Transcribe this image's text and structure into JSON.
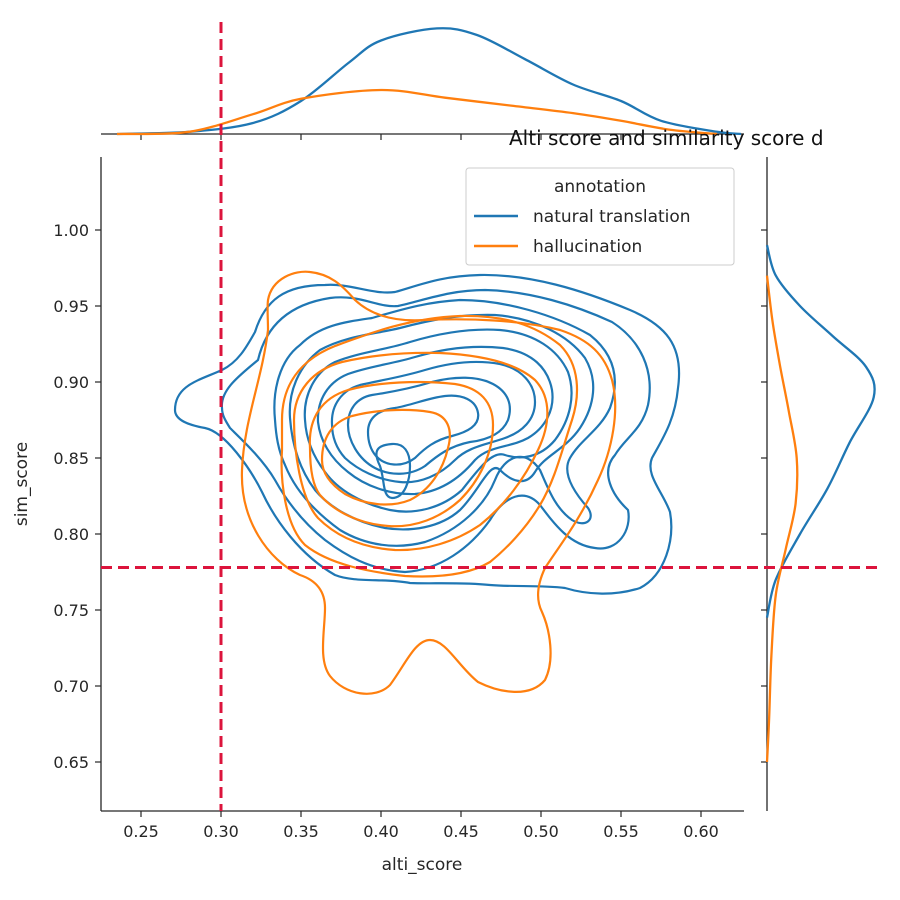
{
  "chart_data": {
    "type": "kde-joint",
    "title": "Alti score and similarity score d",
    "xlabel": "alti_score",
    "ylabel": "sim_score",
    "xlim": [
      0.225,
      0.625
    ],
    "ylim": [
      0.618,
      1.045
    ],
    "x_ticks": [
      "0.25",
      "0.30",
      "0.35",
      "0.40",
      "0.45",
      "0.50",
      "0.55",
      "0.60"
    ],
    "y_ticks": [
      "0.65",
      "0.70",
      "0.75",
      "0.80",
      "0.85",
      "0.90",
      "0.95",
      "1.00"
    ],
    "threshold_lines": {
      "x": 0.3,
      "y": 0.778,
      "color": "#dc143c"
    },
    "legend": {
      "title": "annotation",
      "placement": "upper-right",
      "entries": [
        {
          "label": "natural translation",
          "color": "#1f77b4"
        },
        {
          "label": "hallucination",
          "color": "#ff7f0e"
        }
      ]
    },
    "series": [
      {
        "name": "natural translation",
        "color": "#1f77b4",
        "kde_center": {
          "x": 0.435,
          "y": 0.882
        },
        "contour_levels": 9,
        "marginal_x": [
          [
            0.235,
            0.0
          ],
          [
            0.28,
            0.02
          ],
          [
            0.32,
            0.1
          ],
          [
            0.35,
            0.3
          ],
          [
            0.38,
            0.65
          ],
          [
            0.4,
            0.85
          ],
          [
            0.435,
            0.96
          ],
          [
            0.46,
            0.9
          ],
          [
            0.49,
            0.68
          ],
          [
            0.52,
            0.45
          ],
          [
            0.55,
            0.3
          ],
          [
            0.575,
            0.12
          ],
          [
            0.61,
            0.02
          ],
          [
            0.625,
            0.0
          ]
        ],
        "marginal_y": [
          [
            0.745,
            0.0
          ],
          [
            0.77,
            0.08
          ],
          [
            0.8,
            0.3
          ],
          [
            0.83,
            0.55
          ],
          [
            0.86,
            0.75
          ],
          [
            0.89,
            0.97
          ],
          [
            0.91,
            0.9
          ],
          [
            0.93,
            0.6
          ],
          [
            0.95,
            0.3
          ],
          [
            0.97,
            0.08
          ],
          [
            0.99,
            0.0
          ]
        ]
      },
      {
        "name": "hallucination",
        "color": "#ff7f0e",
        "kde_center": {
          "x": 0.4,
          "y": 0.845
        },
        "contour_levels": 5,
        "marginal_x": [
          [
            0.235,
            0.0
          ],
          [
            0.28,
            0.02
          ],
          [
            0.32,
            0.18
          ],
          [
            0.35,
            0.32
          ],
          [
            0.4,
            0.4
          ],
          [
            0.44,
            0.33
          ],
          [
            0.48,
            0.26
          ],
          [
            0.52,
            0.19
          ],
          [
            0.55,
            0.12
          ],
          [
            0.58,
            0.04
          ],
          [
            0.61,
            0.0
          ]
        ],
        "marginal_y": [
          [
            0.65,
            0.0
          ],
          [
            0.68,
            0.02
          ],
          [
            0.72,
            0.04
          ],
          [
            0.76,
            0.08
          ],
          [
            0.79,
            0.17
          ],
          [
            0.82,
            0.26
          ],
          [
            0.85,
            0.27
          ],
          [
            0.88,
            0.2
          ],
          [
            0.91,
            0.12
          ],
          [
            0.94,
            0.05
          ],
          [
            0.97,
            0.0
          ]
        ]
      }
    ]
  }
}
